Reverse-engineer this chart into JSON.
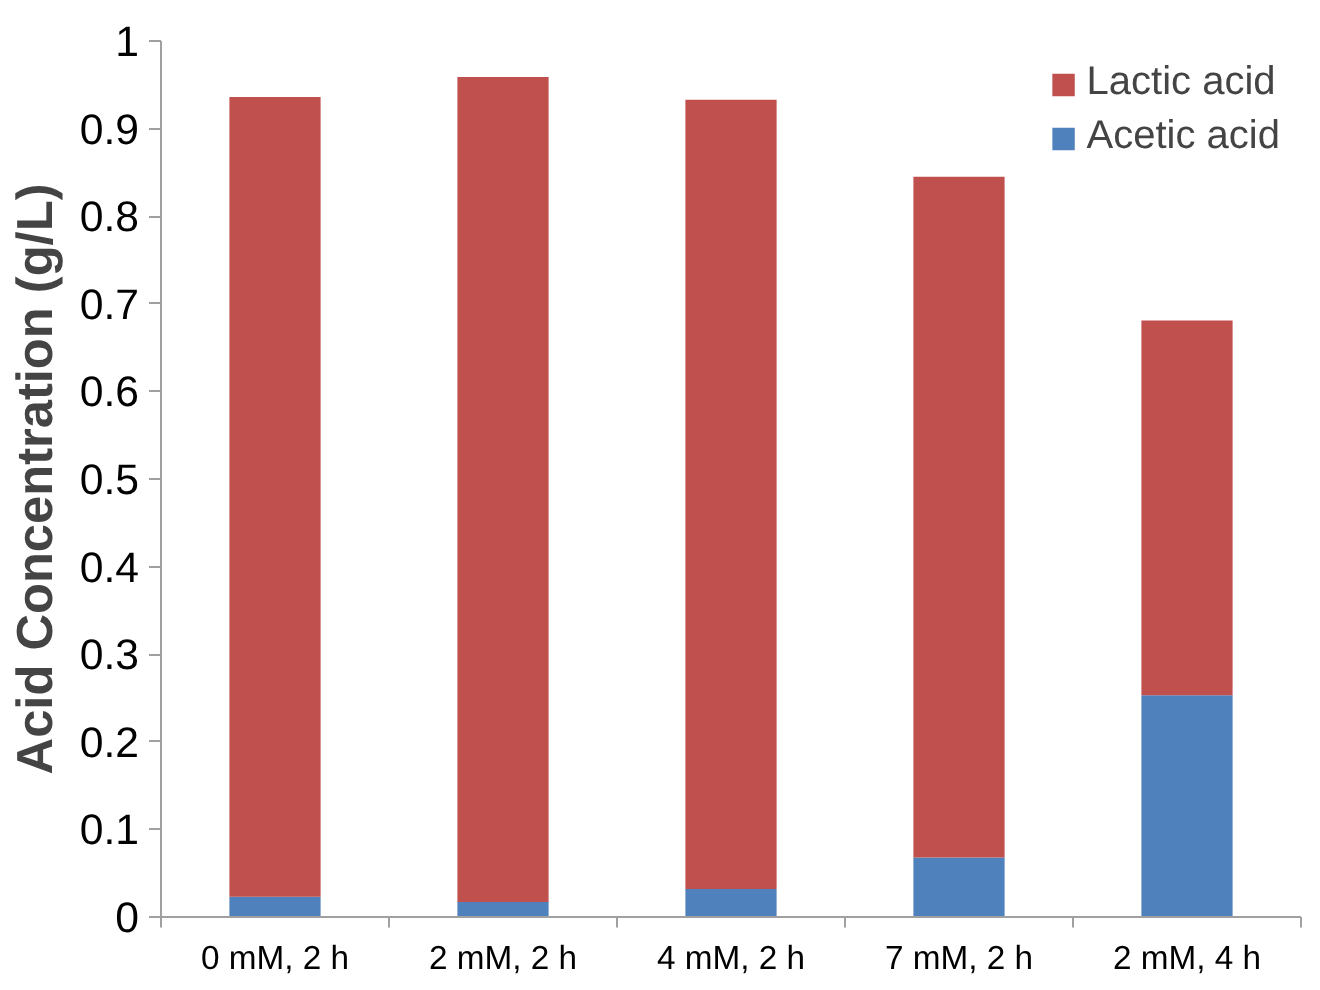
{
  "chart_data": {
    "type": "bar",
    "stacked": true,
    "ylabel": "Acid Concentration (g/L)",
    "categories": [
      "0 mM, 2 h",
      "2 mM, 2 h",
      "4 mM, 2 h",
      "7 mM, 2 h",
      "2 mM, 4 h"
    ],
    "series": [
      {
        "name": "Acetic acid",
        "color": "#4f81bd",
        "values": [
          0.023,
          0.017,
          0.032,
          0.068,
          0.253
        ]
      },
      {
        "name": "Lactic acid",
        "color": "#c0504d",
        "values": [
          0.913,
          0.942,
          0.901,
          0.777,
          0.428
        ]
      }
    ],
    "ylim": [
      0,
      1
    ],
    "yticks": [
      0,
      {
        "value": 0.1,
        "label": "0.1"
      },
      {
        "value": 0.2,
        "label": "0.2"
      },
      {
        "value": 0.3,
        "label": "0.3"
      },
      {
        "value": 0.4,
        "label": "0.4"
      },
      {
        "value": 0.5,
        "label": "0.5"
      },
      {
        "value": 0.6,
        "label": "0.6"
      },
      {
        "value": 0.7,
        "label": "0.7"
      },
      {
        "value": 0.8,
        "label": "0.8"
      },
      {
        "value": 0.9,
        "label": "0.9"
      },
      1
    ],
    "grid": false,
    "legend": "top right"
  }
}
